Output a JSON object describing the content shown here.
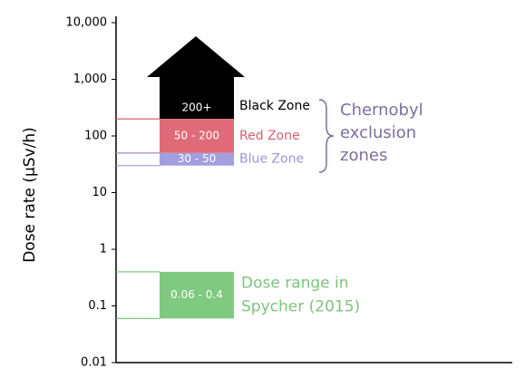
{
  "chart_data": {
    "type": "range",
    "y_label": "Dose rate (µSv/h)",
    "ylim": [
      0.01,
      10000
    ],
    "log_scale": true,
    "yticks": [
      0.01,
      0.1,
      1,
      10,
      100,
      {
        "value": 1000,
        "label": "1,000"
      },
      {
        "value": 10000,
        "label": "10,000"
      }
    ],
    "ranges": [
      {
        "name": "Black Zone",
        "low": 200,
        "value_label": "200+",
        "color": "#000000",
        "text_color": "#000000",
        "line_color": "#888888"
      },
      {
        "name": "Red Zone",
        "low": 50,
        "high": 200,
        "value_label": "50 - 200",
        "color": "#e06b78",
        "text_color": "#d9606e",
        "line_color": "#e06b78"
      },
      {
        "name": "Blue Zone",
        "low": 30,
        "high": 50,
        "value_label": "30 - 50",
        "color": "#a29fe0",
        "text_color": "#9b97d8",
        "line_color": "#a29fe0"
      },
      {
        "name": [
          "Dose range in",
          "Spycher (2015)"
        ],
        "low": 0.06,
        "high": 0.4,
        "value_label": "0.06 - 0.4",
        "color": "#80c980",
        "text_color": "#7dc47d",
        "line_color": "#80c980"
      }
    ],
    "group_label": [
      "Chernobyl",
      "exclusion",
      "zones"
    ],
    "group_color": "#7b6fa0"
  }
}
